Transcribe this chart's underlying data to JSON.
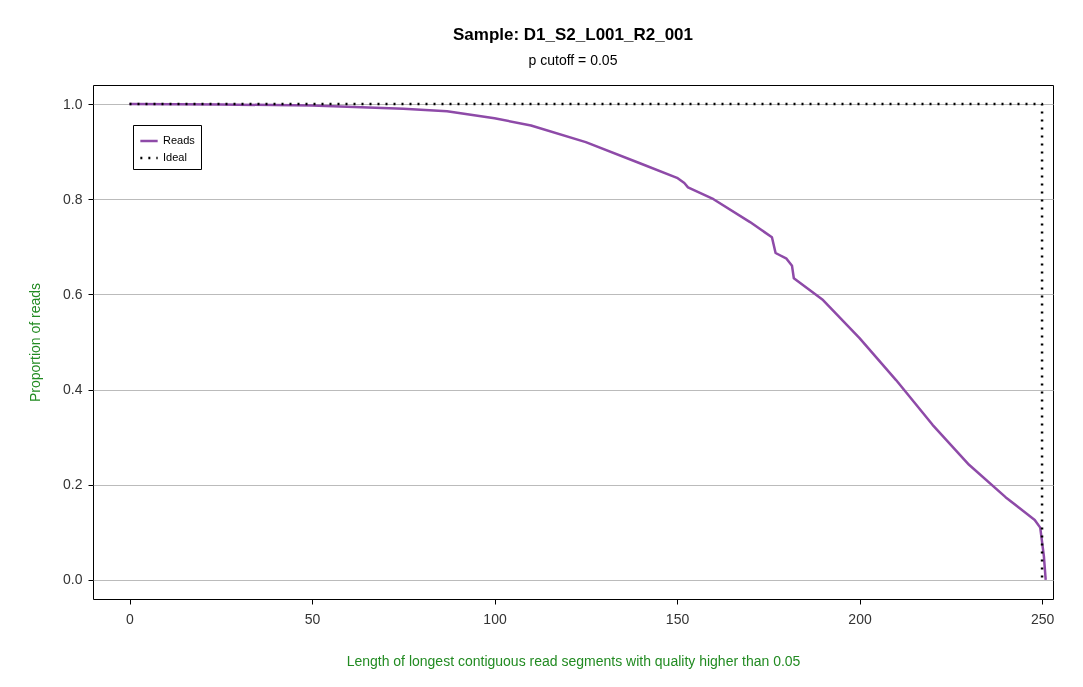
{
  "chart_data": {
    "type": "line",
    "title": "Sample:  D1_S2_L001_R2_001",
    "subtitle": "p cutoff =  0.05",
    "xlabel": "Length of longest contiguous read segments with quality higher than 0.05",
    "ylabel": "Proportion of reads",
    "xlim": [
      -10,
      253
    ],
    "ylim": [
      -0.04,
      1.04
    ],
    "xticks": [
      0,
      50,
      100,
      150,
      200,
      250
    ],
    "yticks": [
      {
        "value": 0,
        "label": "0.0"
      },
      0.2,
      0.4,
      0.6,
      0.8,
      {
        "value": 1,
        "label": "1.0"
      }
    ],
    "grid": "y",
    "legend": "top left",
    "series": [
      {
        "name": "Reads",
        "color": "#8e4aa8",
        "line_style": "solid",
        "x": [
          0,
          25,
          50,
          75,
          87,
          100,
          110,
          125,
          140,
          150,
          152,
          153,
          160,
          170,
          176,
          177,
          180,
          181.5,
          182,
          190,
          200,
          210,
          220,
          230,
          240,
          248,
          249.5,
          250.5,
          251
        ],
        "values": [
          1.0,
          0.999,
          0.997,
          0.99,
          0.985,
          0.97,
          0.955,
          0.92,
          0.875,
          0.845,
          0.834,
          0.825,
          0.8,
          0.752,
          0.72,
          0.687,
          0.675,
          0.66,
          0.634,
          0.588,
          0.508,
          0.42,
          0.326,
          0.242,
          0.174,
          0.126,
          0.11,
          0.05,
          0.0
        ]
      },
      {
        "name": "Ideal",
        "color": "#000000",
        "line_style": "dotted",
        "x": [
          0,
          250,
          250
        ],
        "values": [
          1,
          1,
          0
        ]
      }
    ]
  }
}
